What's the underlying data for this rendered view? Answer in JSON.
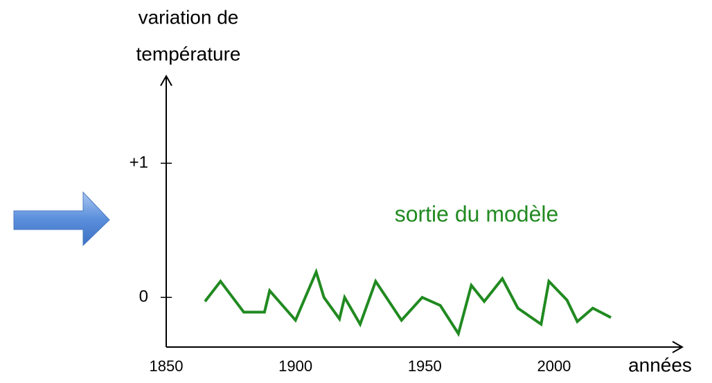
{
  "chart_data": {
    "type": "line",
    "ylabel_lines": [
      "variation de",
      "température"
    ],
    "xlabel": "années",
    "annotation": "sortie du modèle",
    "xlim": [
      1850,
      2050
    ],
    "ylim": [
      -0.37,
      1.65
    ],
    "xticks": [
      1850,
      1900,
      1950,
      2000
    ],
    "yticks": [
      0,
      {
        "value": 1,
        "label": "+1"
      }
    ],
    "series": [
      {
        "name": "sortie du modèle",
        "color": "#218a21",
        "x": [
          1865,
          1871,
          1880,
          1888,
          1890,
          1900,
          1908,
          1911,
          1917,
          1919,
          1925,
          1931,
          1941,
          1949,
          1956,
          1963,
          1968,
          1973,
          1980,
          1986,
          1995,
          1998,
          2005,
          2009,
          2015,
          2022
        ],
        "values": [
          -0.03,
          0.12,
          -0.11,
          -0.11,
          0.05,
          -0.17,
          0.19,
          0,
          -0.16,
          0,
          -0.2,
          0.12,
          -0.17,
          0,
          -0.06,
          -0.27,
          0.09,
          -0.03,
          0.14,
          -0.08,
          -0.2,
          0.12,
          -0.02,
          -0.18,
          -0.08,
          -0.15
        ]
      }
    ]
  }
}
